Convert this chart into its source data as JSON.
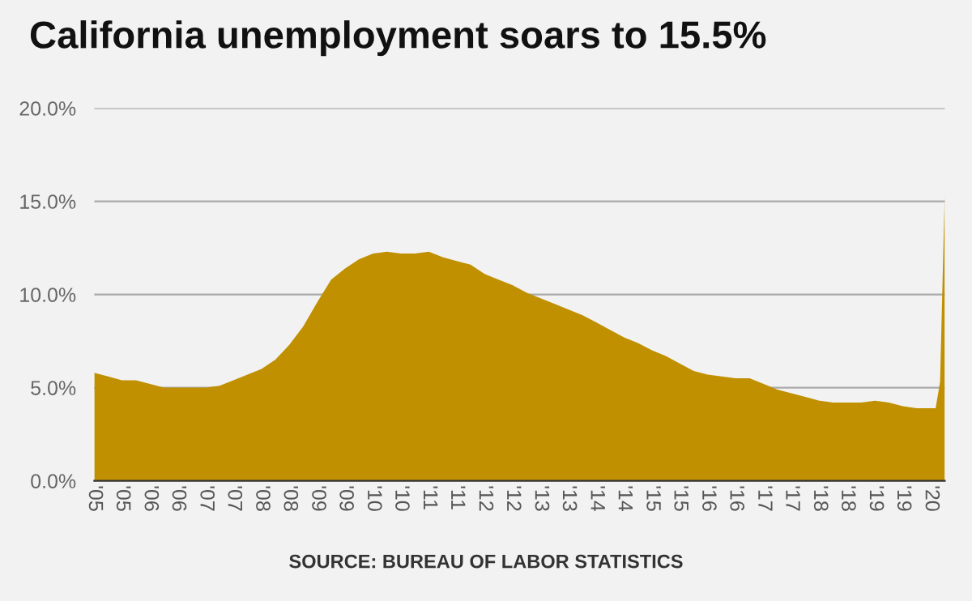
{
  "chart_data": {
    "type": "area",
    "title": "California unemployment soars to 15.5%",
    "annotations": [
      "SOURCE: BUREAU OF LABOR STATISTICS"
    ],
    "x": [
      "2005-01",
      "2005-04",
      "2005-07",
      "2005-10",
      "2006-01",
      "2006-04",
      "2006-07",
      "2006-10",
      "2007-01",
      "2007-04",
      "2007-07",
      "2007-10",
      "2008-01",
      "2008-04",
      "2008-07",
      "2008-10",
      "2009-01",
      "2009-04",
      "2009-07",
      "2009-10",
      "2010-01",
      "2010-04",
      "2010-07",
      "2010-10",
      "2011-01",
      "2011-04",
      "2011-07",
      "2011-10",
      "2012-01",
      "2012-04",
      "2012-07",
      "2012-10",
      "2013-01",
      "2013-04",
      "2013-07",
      "2013-10",
      "2014-01",
      "2014-04",
      "2014-07",
      "2014-10",
      "2015-01",
      "2015-04",
      "2015-07",
      "2015-10",
      "2016-01",
      "2016-04",
      "2016-07",
      "2016-10",
      "2017-01",
      "2017-04",
      "2017-07",
      "2017-10",
      "2018-01",
      "2018-04",
      "2018-07",
      "2018-10",
      "2019-01",
      "2019-04",
      "2019-07",
      "2019-10",
      "2020-01",
      "2020-02",
      "2020-03",
      "2020-04"
    ],
    "series": [
      {
        "color": "#c09000",
        "values": [
          5.8,
          5.6,
          5.4,
          5.4,
          5.2,
          5.0,
          5.0,
          5.0,
          5.0,
          5.1,
          5.4,
          5.7,
          6.0,
          6.5,
          7.3,
          8.3,
          9.6,
          10.8,
          11.4,
          11.9,
          12.2,
          12.3,
          12.2,
          12.2,
          12.3,
          12.0,
          11.8,
          11.6,
          11.1,
          10.8,
          10.5,
          10.1,
          9.8,
          9.5,
          9.2,
          8.9,
          8.5,
          8.1,
          7.7,
          7.4,
          7.0,
          6.7,
          6.3,
          5.9,
          5.7,
          5.6,
          5.5,
          5.5,
          5.2,
          4.9,
          4.7,
          4.5,
          4.3,
          4.2,
          4.2,
          4.2,
          4.3,
          4.2,
          4.0,
          3.9,
          3.9,
          3.9,
          5.3,
          15.5
        ]
      }
    ],
    "xlim": [
      "2005-01",
      "2020-04"
    ],
    "xticks": [
      {
        "value": "2005-01",
        "label": "'05"
      },
      {
        "value": "2005-07",
        "label": "'05"
      },
      {
        "value": "2006-01",
        "label": "'06"
      },
      {
        "value": "2006-07",
        "label": "'06"
      },
      {
        "value": "2007-01",
        "label": "'07"
      },
      {
        "value": "2007-07",
        "label": "'07"
      },
      {
        "value": "2008-01",
        "label": "'08"
      },
      {
        "value": "2008-07",
        "label": "'08"
      },
      {
        "value": "2009-01",
        "label": "'09"
      },
      {
        "value": "2009-07",
        "label": "'09"
      },
      {
        "value": "2010-01",
        "label": "'10"
      },
      {
        "value": "2010-07",
        "label": "'10"
      },
      {
        "value": "2011-01",
        "label": "'11"
      },
      {
        "value": "2011-07",
        "label": "'11"
      },
      {
        "value": "2012-01",
        "label": "'12"
      },
      {
        "value": "2012-07",
        "label": "'12"
      },
      {
        "value": "2013-01",
        "label": "'13"
      },
      {
        "value": "2013-07",
        "label": "'13"
      },
      {
        "value": "2014-01",
        "label": "'14"
      },
      {
        "value": "2014-07",
        "label": "'14"
      },
      {
        "value": "2015-01",
        "label": "'15"
      },
      {
        "value": "2015-07",
        "label": "'15"
      },
      {
        "value": "2016-01",
        "label": "'16"
      },
      {
        "value": "2016-07",
        "label": "'16"
      },
      {
        "value": "2017-01",
        "label": "'17"
      },
      {
        "value": "2017-07",
        "label": "'17"
      },
      {
        "value": "2018-01",
        "label": "'18"
      },
      {
        "value": "2018-07",
        "label": "'18"
      },
      {
        "value": "2019-01",
        "label": "'19"
      },
      {
        "value": "2019-07",
        "label": "'19"
      },
      {
        "value": "2020-01",
        "label": "'20"
      }
    ],
    "ylim": [
      0,
      20
    ],
    "yticks": [
      {
        "value": 0,
        "label": "0.0%"
      },
      {
        "value": 5,
        "label": "5.0%"
      },
      {
        "value": 10,
        "label": "10.0%"
      },
      {
        "value": 15,
        "label": "15.0%"
      },
      {
        "value": 20,
        "label": "20.0%"
      }
    ],
    "grid": "y"
  }
}
